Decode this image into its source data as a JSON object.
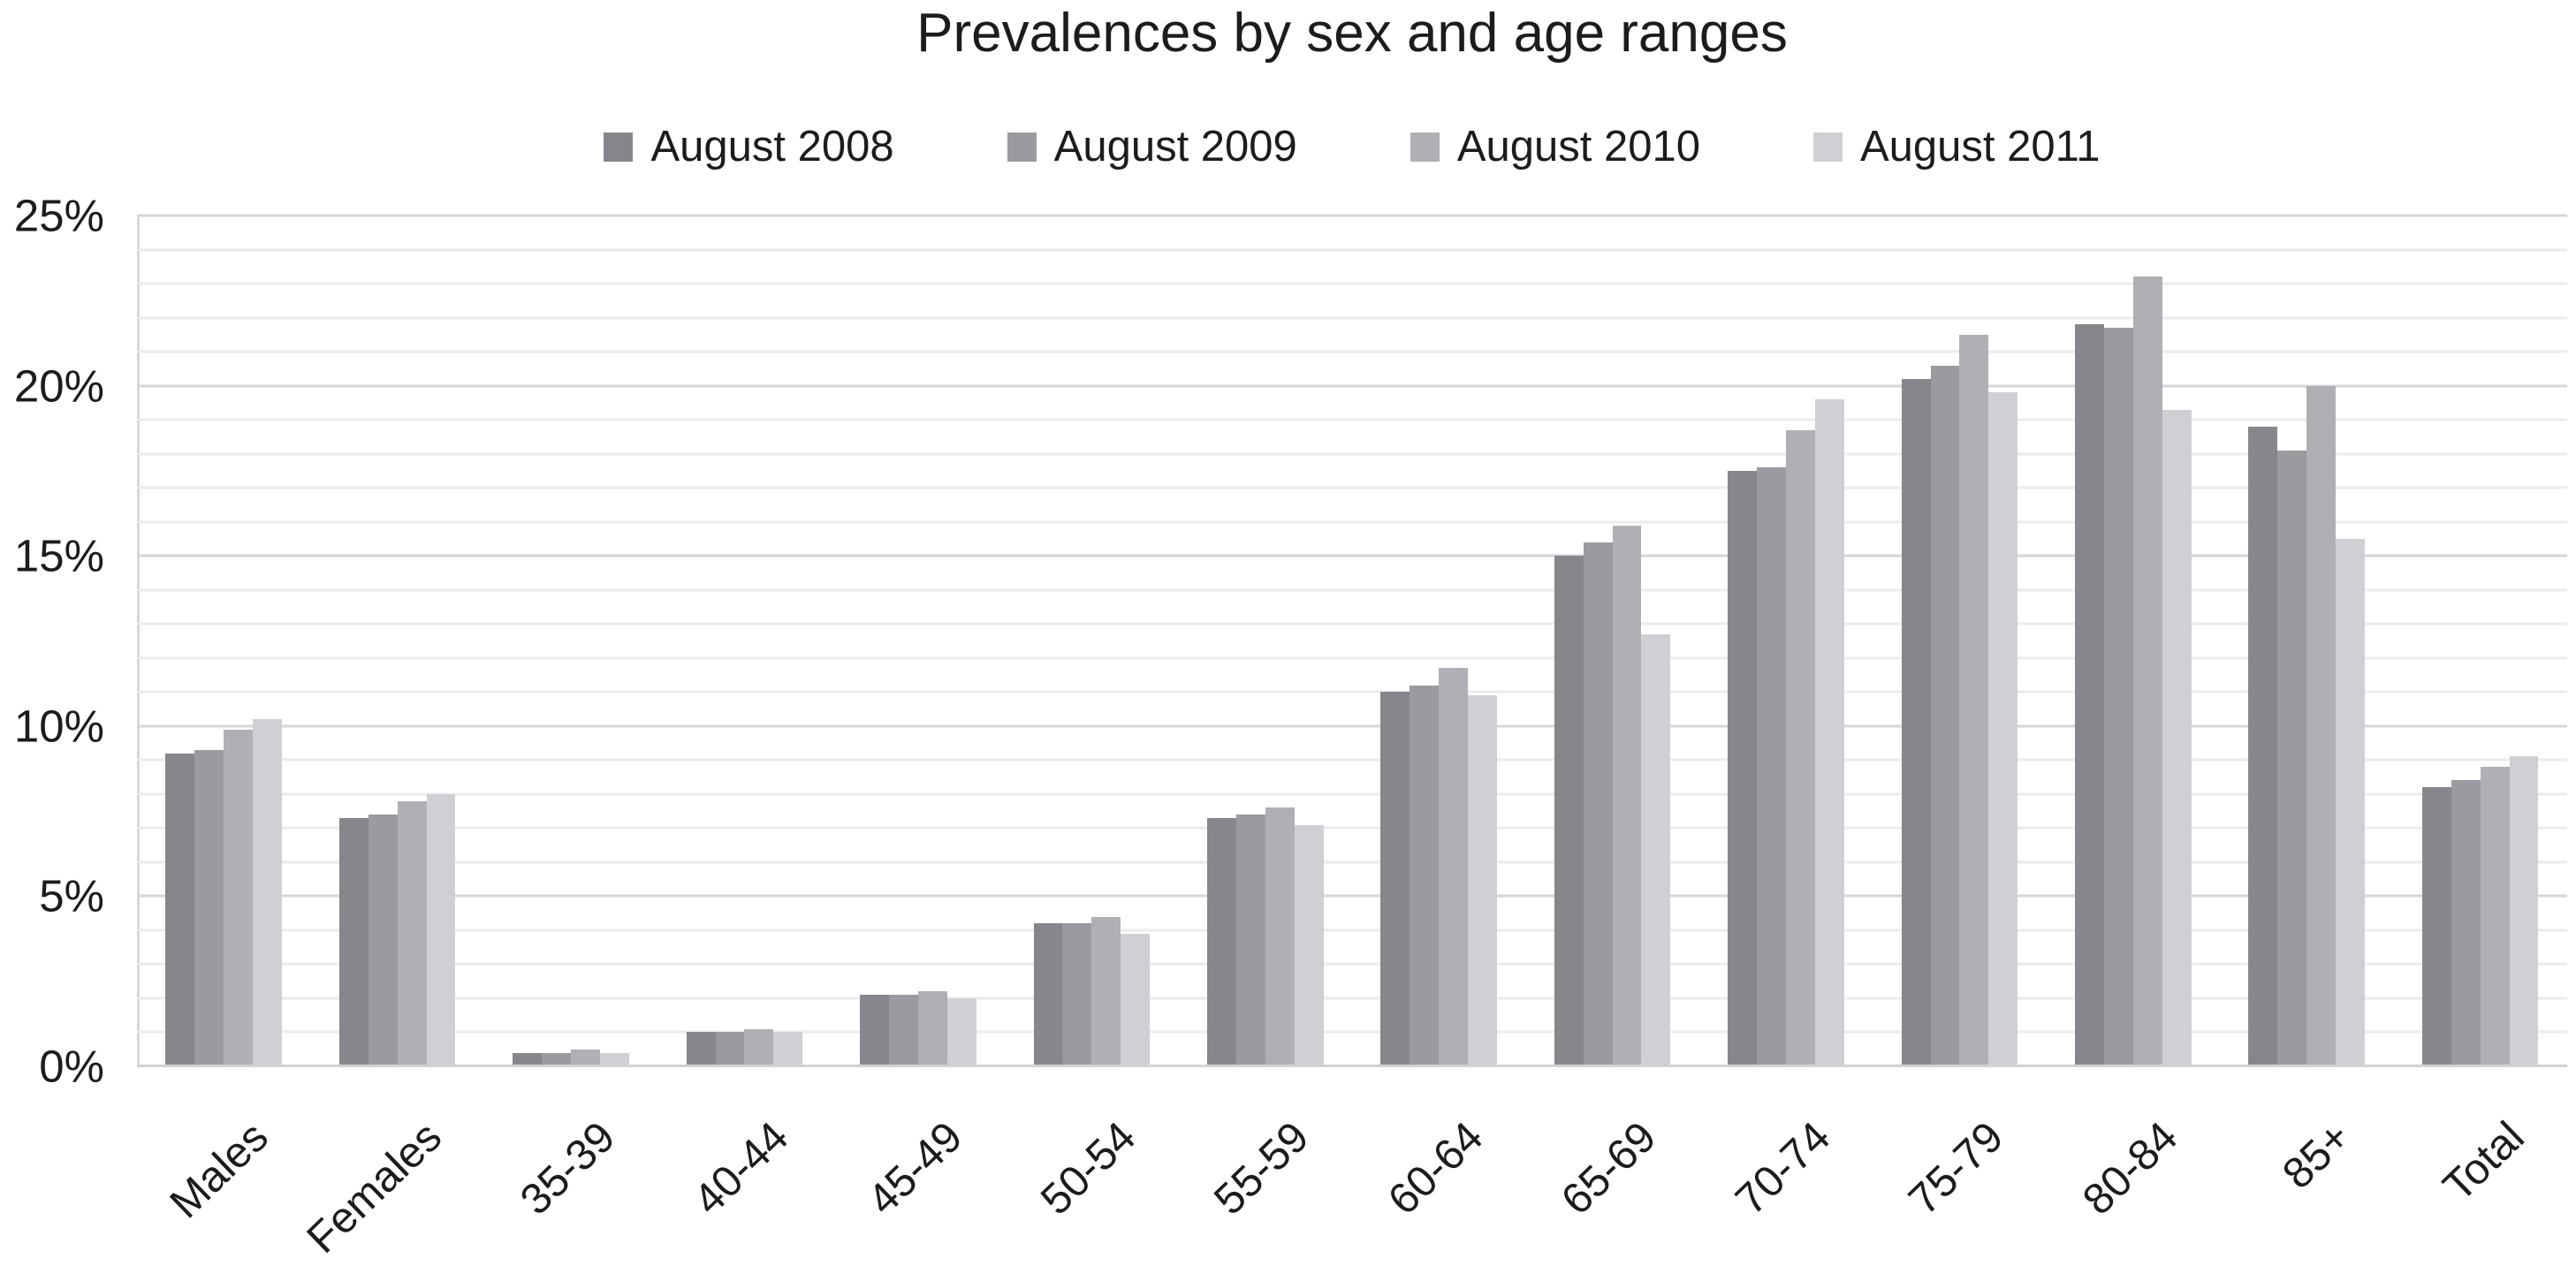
{
  "title": "Prevalences by sex and age ranges",
  "y_axis": {
    "ticks": [
      {
        "label": "0%",
        "value": 0
      },
      {
        "label": "5%",
        "value": 5
      },
      {
        "label": "10%",
        "value": 10
      },
      {
        "label": "15%",
        "value": 15
      },
      {
        "label": "20%",
        "value": 20
      },
      {
        "label": "25%",
        "value": 25
      }
    ],
    "max": 25,
    "minor_step": 1,
    "major_step": 5
  },
  "chart_data": {
    "type": "bar",
    "title": "Prevalences by sex and age ranges",
    "categories": [
      "Males",
      "Females",
      "35-39",
      "40-44",
      "45-49",
      "50-54",
      "55-59",
      "60-64",
      "65-69",
      "70-74",
      "75-79",
      "80-84",
      "85+",
      "Total"
    ],
    "series": [
      {
        "name": "August 2008",
        "color": "#86868c",
        "values": [
          9.2,
          7.3,
          0.4,
          1.0,
          2.1,
          4.2,
          7.3,
          11.0,
          15.0,
          17.5,
          20.2,
          21.8,
          18.8,
          8.2
        ]
      },
      {
        "name": "August 2009",
        "color": "#9a9aa0",
        "values": [
          9.3,
          7.4,
          0.4,
          1.0,
          2.1,
          4.2,
          7.4,
          11.2,
          15.4,
          17.6,
          20.6,
          21.7,
          18.1,
          8.4
        ]
      },
      {
        "name": "August 2010",
        "color": "#afb0b5",
        "values": [
          9.9,
          7.8,
          0.5,
          1.1,
          2.2,
          4.4,
          7.6,
          11.7,
          15.9,
          18.7,
          21.5,
          23.2,
          20.0,
          8.8
        ]
      },
      {
        "name": "August 2011",
        "color": "#cfd0d4",
        "values": [
          10.2,
          8.0,
          0.4,
          1.0,
          2.0,
          3.9,
          7.1,
          10.9,
          12.7,
          19.6,
          19.8,
          19.3,
          15.5,
          9.1
        ]
      }
    ],
    "xlabel": "",
    "ylabel": "",
    "ylim": [
      0,
      25
    ],
    "grid": "horizontal, minor every 1%, major every 5%",
    "legend_position": "top-center",
    "x_tick_rotation_deg": 44
  }
}
